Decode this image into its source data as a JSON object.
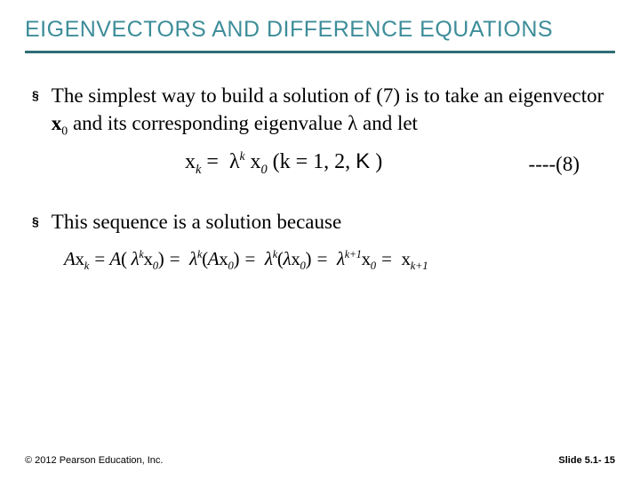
{
  "title": "EIGENVECTORS AND DIFFERENCE EQUATIONS",
  "bullets": {
    "b1_pre": "The simplest way to build a solution of (7) is to take an eigenvector ",
    "b1_vec": "x",
    "b1_sub": "0",
    "b1_mid": " and its corresponding eigenvalue λ and let",
    "b2": "This sequence is a solution because"
  },
  "eq8": {
    "xk": "x",
    "k_sub": "k",
    "eq": " = ",
    "lam": "λ",
    "k_sup": "k",
    "x0": "x",
    "zero": "0",
    "paren": " (k = 1, 2, ",
    "ksym": "K",
    "close": " )",
    "label": "----(8)"
  },
  "proof": {
    "text": "Ax_k = A(λ^k x_0) = λ^k (Ax_0) = λ^k (λx_0) = λ^{k+1} x_0 = x_{k+1}"
  },
  "footer": {
    "left": "© 2012 Pearson Education, Inc.",
    "right": "Slide 5.1- 15"
  },
  "colors": {
    "title": "#3d8d99",
    "rule": "#2d6d76",
    "text": "#000000",
    "bg": "#ffffff"
  },
  "fonts": {
    "title_family": "Arial",
    "title_size_pt": 19,
    "body_family": "Times New Roman",
    "body_size_pt": 17,
    "footer_size_pt": 8
  }
}
